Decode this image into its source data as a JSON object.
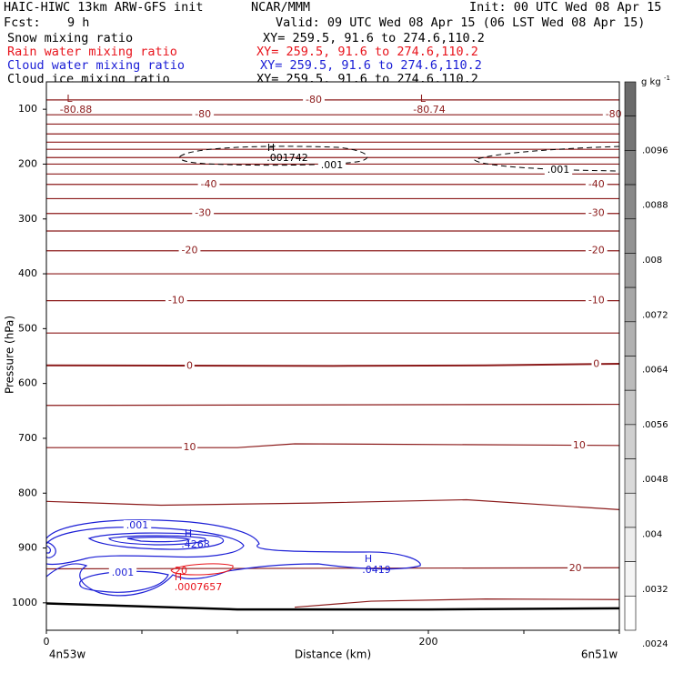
{
  "header": {
    "title": "HAIC-HIWC 13km ARW-GFS init",
    "org": "NCAR/MMM",
    "init": "Init: 00 UTC Wed 08 Apr 15",
    "fcst_label": "Fcst:",
    "fcst_value": "9 h",
    "valid": "Valid: 09 UTC Wed 08 Apr 15 (06 LST Wed 08 Apr 15)"
  },
  "fields": [
    {
      "name": "Snow mixing ratio",
      "xy": "XY= 259.5, 91.6 to 274.6,110.2",
      "color": "#000000"
    },
    {
      "name": "Rain water mixing ratio",
      "xy": "XY= 259.5, 91.6 to 274.6,110.2",
      "color": "#e8141c"
    },
    {
      "name": "Cloud water mixing ratio",
      "xy": "XY= 259.5, 91.6 to 274.6,110.2",
      "color": "#1d20d6"
    },
    {
      "name": "Cloud ice mixing ratio",
      "xy": "XY= 259.5, 91.6 to 274.6,110.2",
      "color": "#000000"
    }
  ],
  "chart_data": {
    "type": "contour",
    "xlabel": "Distance (km)",
    "ylabel": "Pressure (hPa)",
    "xlim": [
      0,
      300
    ],
    "ylim": [
      1050,
      50
    ],
    "x_ticks": [
      0,
      200
    ],
    "x_minor_step": 50,
    "y_ticks": [
      100,
      200,
      300,
      400,
      500,
      600,
      700,
      800,
      900,
      1000
    ],
    "x_endpoints": {
      "left": "4n53w",
      "right": "6n51w"
    },
    "temperature_contours": {
      "color": "#8b1a1a",
      "lines": [
        {
          "label": "-80",
          "values": [
            [
              0,
              83
            ],
            [
              300,
              83
            ]
          ],
          "label_at": [
            [
              140,
              83
            ]
          ]
        },
        {
          "label": "-80",
          "values": [
            [
              0,
              110
            ],
            [
              300,
              110
            ]
          ],
          "label_at": [
            [
              82,
              110
            ],
            [
              297,
              110
            ]
          ]
        },
        {
          "label": "",
          "values": [
            [
              0,
              127
            ],
            [
              300,
              127
            ]
          ]
        },
        {
          "label": "",
          "values": [
            [
              0,
              145
            ],
            [
              300,
              145
            ]
          ]
        },
        {
          "label": "",
          "values": [
            [
              0,
              160
            ],
            [
              300,
              160
            ]
          ]
        },
        {
          "label": "",
          "values": [
            [
              0,
              173
            ],
            [
              300,
              173
            ]
          ]
        },
        {
          "label": "",
          "values": [
            [
              0,
              188
            ],
            [
              300,
              188
            ]
          ]
        },
        {
          "label": "",
          "values": [
            [
              0,
              200
            ],
            [
              300,
              200
            ]
          ]
        },
        {
          "label": "",
          "values": [
            [
              0,
              218
            ],
            [
              300,
              218
            ]
          ]
        },
        {
          "label": "-40",
          "values": [
            [
              0,
              237
            ],
            [
              300,
              237
            ]
          ],
          "label_at": [
            [
              85,
              237
            ],
            [
              288,
              237
            ]
          ]
        },
        {
          "label": "",
          "values": [
            [
              0,
              263
            ],
            [
              300,
              263
            ]
          ]
        },
        {
          "label": "-30",
          "values": [
            [
              0,
              290
            ],
            [
              300,
              290
            ]
          ],
          "label_at": [
            [
              82,
              290
            ],
            [
              288,
              290
            ]
          ]
        },
        {
          "label": "",
          "values": [
            [
              0,
              322
            ],
            [
              300,
              322
            ]
          ]
        },
        {
          "label": "-20",
          "values": [
            [
              0,
              358
            ],
            [
              300,
              358
            ]
          ],
          "label_at": [
            [
              75,
              358
            ],
            [
              288,
              358
            ]
          ]
        },
        {
          "label": "",
          "values": [
            [
              0,
              400
            ],
            [
              300,
              400
            ]
          ]
        },
        {
          "label": "-10",
          "values": [
            [
              0,
              449
            ],
            [
              300,
              449
            ]
          ],
          "label_at": [
            [
              68,
              449
            ],
            [
              288,
              449
            ]
          ]
        },
        {
          "label": "",
          "values": [
            [
              0,
              508
            ],
            [
              300,
              508
            ]
          ]
        },
        {
          "label": "0",
          "values": [
            [
              0,
              567
            ],
            [
              150,
              568
            ],
            [
              230,
              567
            ],
            [
              300,
              564
            ]
          ],
          "label_at": [
            [
              75,
              568
            ],
            [
              288,
              565
            ]
          ]
        },
        {
          "label": "",
          "values": [
            [
              0,
              640
            ],
            [
              300,
              638
            ]
          ]
        },
        {
          "label": "10",
          "values": [
            [
              0,
              717
            ],
            [
              100,
              717
            ],
            [
              130,
              710
            ],
            [
              300,
              713
            ]
          ],
          "label_at": [
            [
              75,
              717
            ],
            [
              279,
              713
            ]
          ]
        },
        {
          "label": "",
          "values": [
            [
              0,
              815
            ],
            [
              60,
              822
            ],
            [
              140,
              818
            ],
            [
              220,
              812
            ],
            [
              300,
              830
            ]
          ]
        },
        {
          "label": "20",
          "values": [
            [
              0,
              938
            ],
            [
              300,
              936
            ]
          ],
          "label_at": [
            [
              277,
              937
            ]
          ]
        },
        {
          "label": "",
          "values": [
            [
              130,
              1008
            ],
            [
              170,
              997
            ],
            [
              230,
              993
            ],
            [
              300,
              994
            ]
          ]
        }
      ],
      "extrema": [
        {
          "type": "L",
          "value": "-80.88",
          "at": [
            5,
            98
          ]
        },
        {
          "type": "L",
          "value": "-80.74",
          "at": [
            190,
            98
          ]
        }
      ]
    },
    "cloud_ice_contours": {
      "color": "#000000",
      "style": "dashed",
      "labels": [
        ".001",
        ".001"
      ],
      "max": {
        "type": "H",
        "value": ".001742",
        "at": [
          125,
          190
        ]
      }
    },
    "cloud_water_contours": {
      "color": "#1d20d6",
      "labels": [
        ".001",
        ".001"
      ],
      "maxima": [
        {
          "type": "H",
          "value": ".4268",
          "at": [
            78,
            900
          ]
        },
        {
          "type": "H",
          "value": ".0419",
          "at": [
            178,
            945
          ]
        }
      ]
    },
    "rain_water_contours": {
      "color": "#e8141c",
      "label": "20",
      "max": {
        "type": "H",
        "value": ".0007657",
        "at": [
          73,
          975
        ]
      }
    },
    "ground": {
      "color": "#000000",
      "values": [
        [
          0,
          1001
        ],
        [
          100,
          1012
        ],
        [
          200,
          1012
        ],
        [
          300,
          1010
        ]
      ]
    },
    "colorbar": {
      "units": "g kg",
      "units_exponent": "-1",
      "labels": [
        ".0096",
        ".0088",
        ".008",
        ".0072",
        ".0064",
        ".0056",
        ".0048",
        ".004",
        ".0032",
        ".0024"
      ],
      "colors": [
        "#6b6b6b",
        "#757575",
        "#7f7f7f",
        "#898989",
        "#939393",
        "#9d9d9d",
        "#a7a7a7",
        "#b1b1b1",
        "#bbbbbb",
        "#c5c5c5",
        "#cfcfcf",
        "#d9d9d9",
        "#e3e3e3",
        "#ededed",
        "#f5f5f5",
        "#ffffff"
      ]
    }
  }
}
